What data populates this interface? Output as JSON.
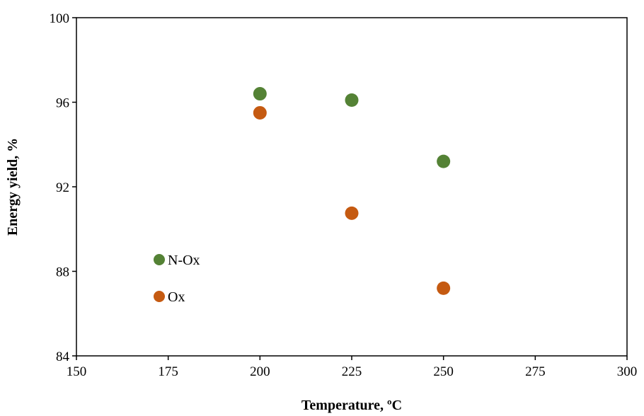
{
  "chart_data": {
    "type": "scatter",
    "title": "",
    "xlabel": "Temperature, ºC",
    "ylabel": "Energy yield, %",
    "xlim": [
      150,
      300
    ],
    "ylim": [
      84,
      100
    ],
    "x_ticks": [
      150,
      175,
      200,
      225,
      250,
      275,
      300
    ],
    "y_ticks": [
      84,
      88,
      92,
      96,
      100
    ],
    "grid": false,
    "legend_position": "inside-left",
    "series": [
      {
        "name": "N-Ox",
        "color": "#548235",
        "x": [
          200,
          225,
          250
        ],
        "y": [
          96.4,
          96.1,
          93.2
        ]
      },
      {
        "name": "Ox",
        "color": "#C55A11",
        "x": [
          200,
          225,
          250
        ],
        "y": [
          95.5,
          90.75,
          87.2
        ]
      }
    ]
  }
}
